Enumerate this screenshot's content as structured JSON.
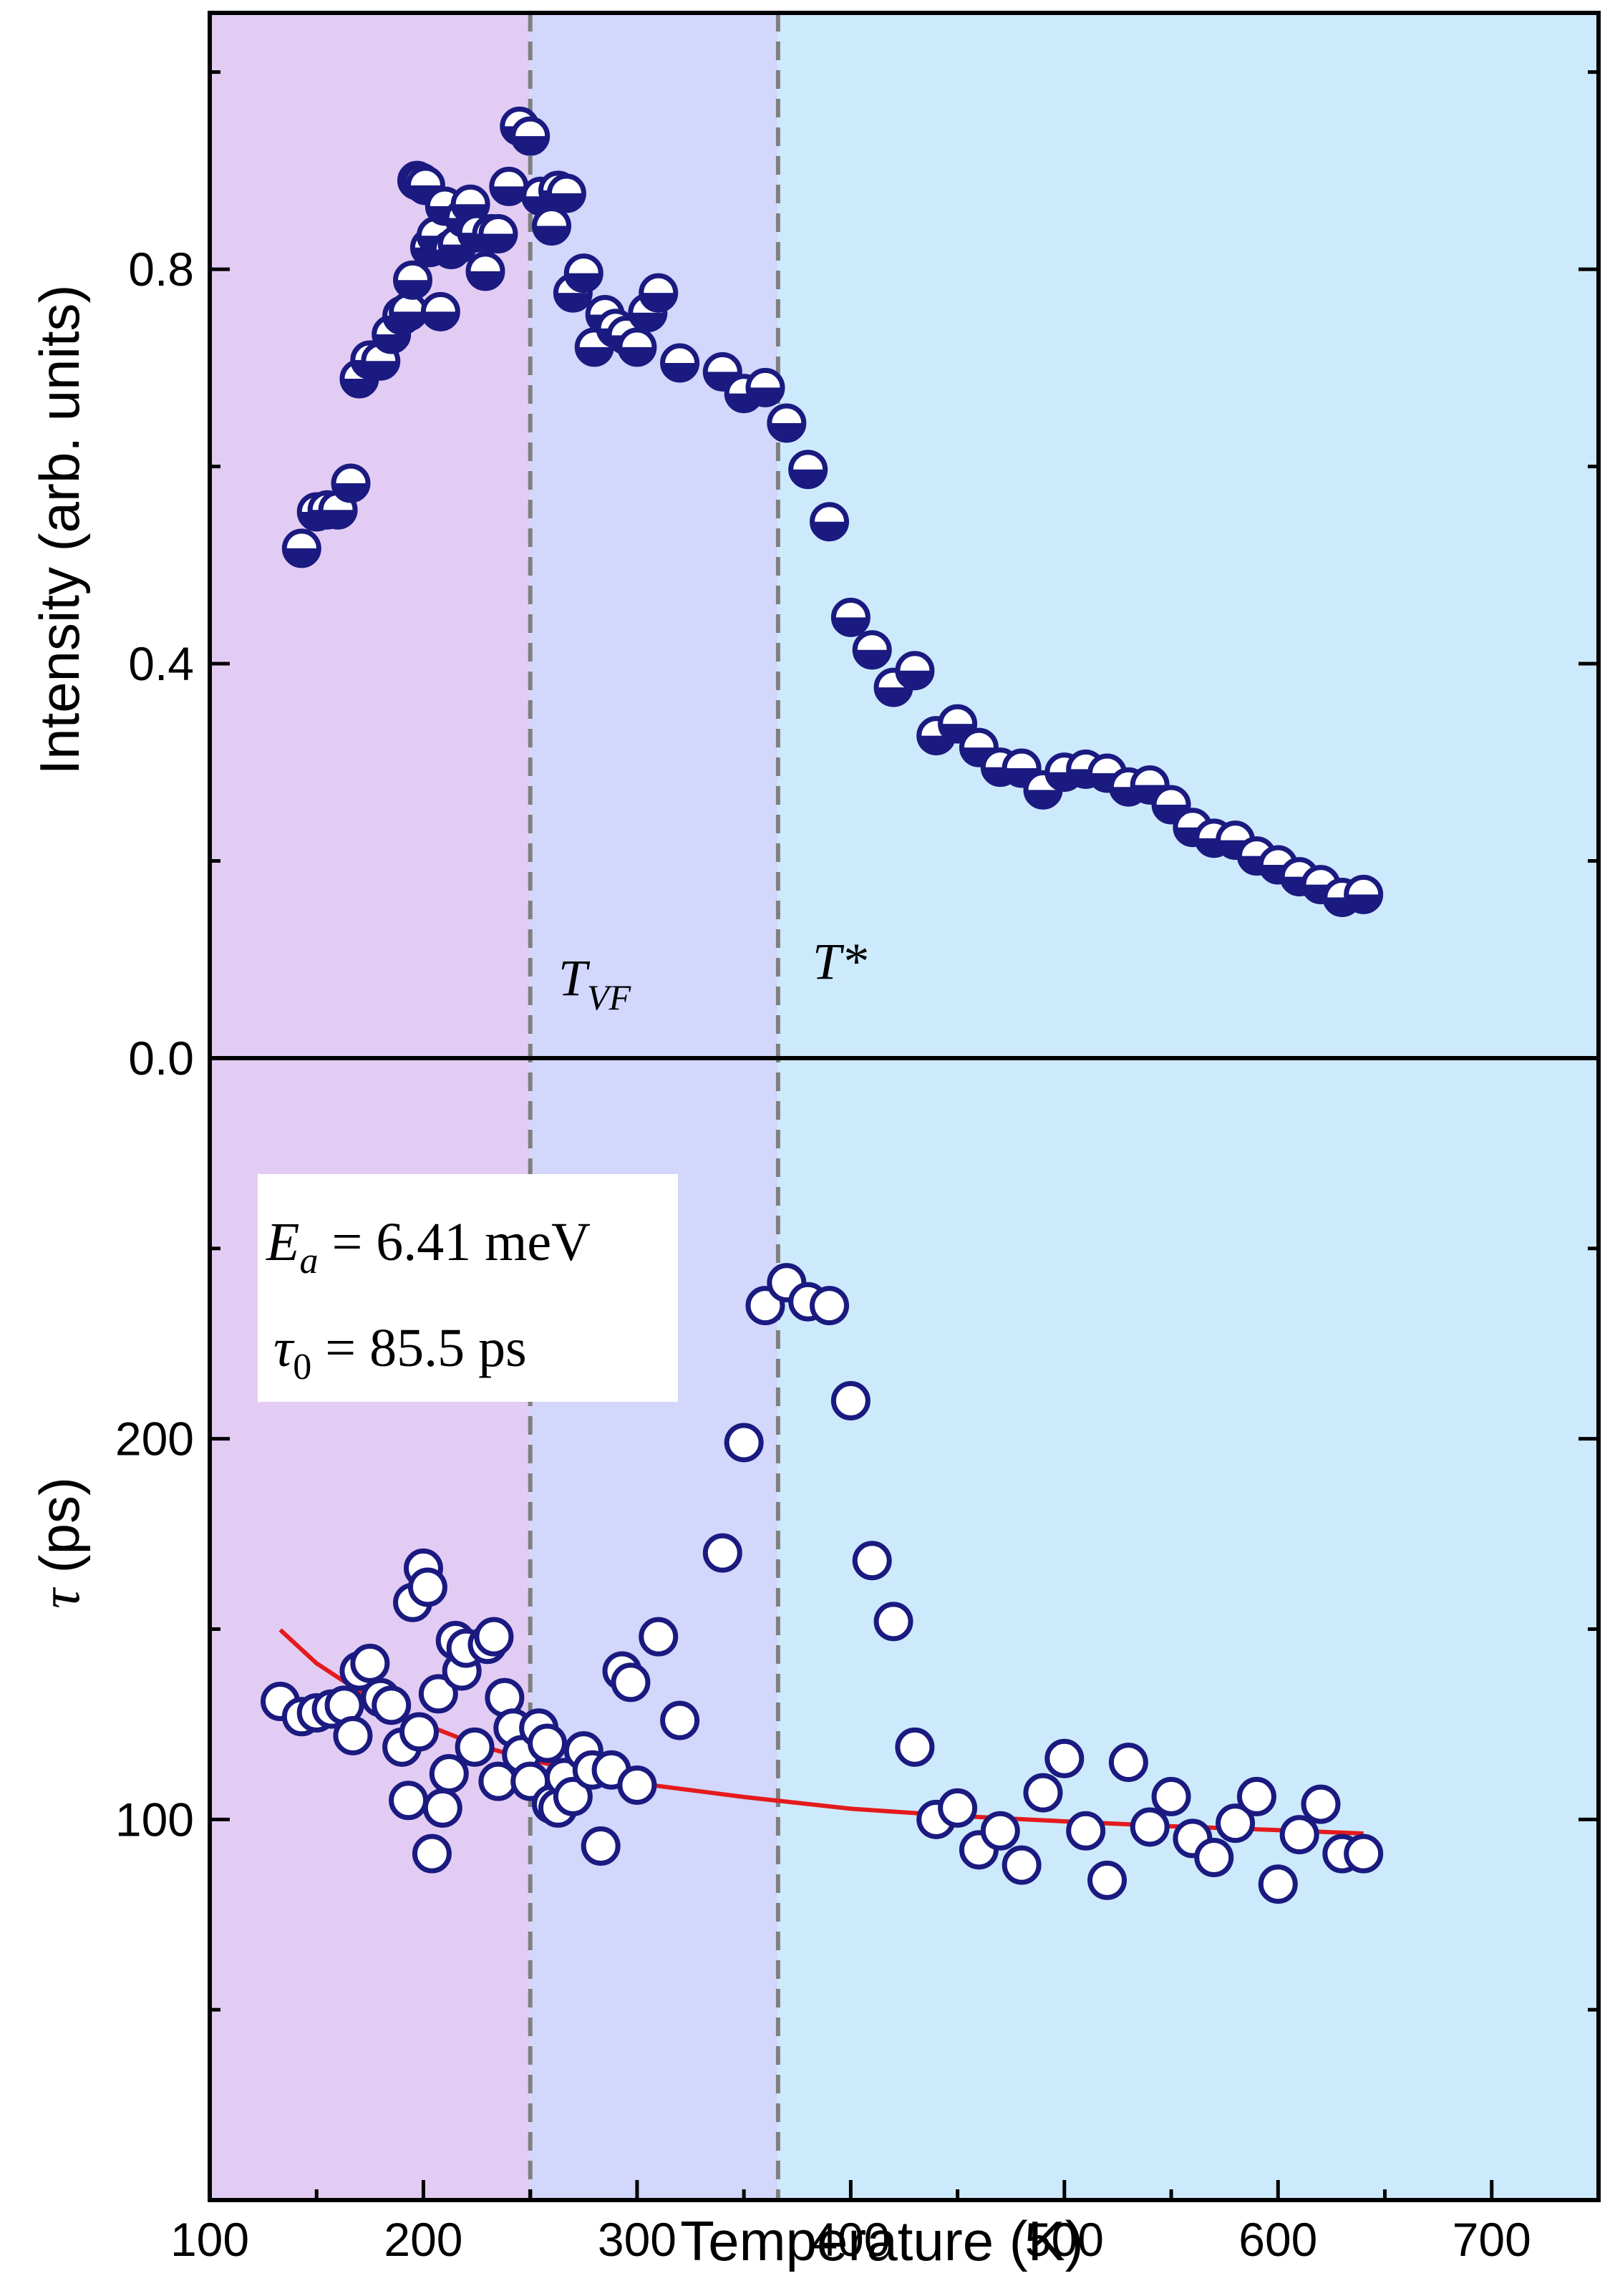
{
  "chart_data": [
    {
      "type": "scatter",
      "panel": "top",
      "xlabel": "Temperature (K)",
      "ylabel": "Intensity (arb. units)",
      "xlim": [
        100,
        750
      ],
      "ylim": [
        0,
        1.06
      ],
      "xticks": [
        "100",
        "200",
        "300",
        "400",
        "500",
        "600",
        "700"
      ],
      "yticks": [
        "0.0",
        "0.4",
        "0.8"
      ],
      "marker": "half-filled circle (bottom filled, navy)",
      "marker_color": "#1a1a80",
      "series": [
        {
          "x": [
            143,
            150,
            155,
            160,
            166,
            170,
            175,
            180,
            185,
            190,
            193,
            195,
            197,
            199,
            201,
            203,
            206,
            208,
            210,
            213,
            216,
            219,
            222,
            225,
            229,
            232,
            235,
            240,
            245,
            250,
            255,
            260,
            263,
            267,
            270,
            275,
            280,
            285,
            290,
            295,
            300,
            305,
            310,
            320,
            340,
            350,
            360,
            370,
            380,
            390,
            400,
            410,
            420,
            430,
            440,
            450,
            460,
            470,
            480,
            490,
            500,
            510,
            520,
            530,
            540,
            550,
            560,
            570,
            580,
            590,
            600,
            610,
            620,
            630,
            640
          ],
          "y": [
            0.517,
            0.554,
            0.556,
            0.556,
            0.583,
            0.689,
            0.708,
            0.707,
            0.734,
            0.753,
            0.757,
            0.789,
            0.89,
            0.888,
            0.885,
            0.822,
            0.834,
            0.757,
            0.864,
            0.82,
            0.825,
            0.852,
            0.866,
            0.837,
            0.798,
            0.836,
            0.836,
            0.884,
            0.945,
            0.935,
            0.874,
            0.844,
            0.88,
            0.877,
            0.776,
            0.796,
            0.721,
            0.754,
            0.74,
            0.733,
            0.721,
            0.756,
            0.776,
            0.705,
            0.696,
            0.674,
            0.68,
            0.644,
            0.597,
            0.544,
            0.447,
            0.414,
            0.376,
            0.393,
            0.327,
            0.339,
            0.315,
            0.295,
            0.294,
            0.272,
            0.29,
            0.293,
            0.289,
            0.275,
            0.277,
            0.257,
            0.234,
            0.223,
            0.221,
            0.205,
            0.196,
            0.184,
            0.176,
            0.163,
            0.166
          ]
        }
      ],
      "vlines": [
        {
          "x": 250,
          "label": "T",
          "sub": "VF"
        },
        {
          "x": 366,
          "label": "T*"
        }
      ],
      "regions": [
        {
          "from": 100,
          "to": 250,
          "color": "#e3ccf4"
        },
        {
          "from": 250,
          "to": 366,
          "color": "#d2d7fb"
        },
        {
          "from": 366,
          "to": 750,
          "color": "#cdeafc"
        }
      ]
    },
    {
      "type": "scatter",
      "panel": "bottom",
      "xlabel": "Temperature (K)",
      "ylabel": "τ (ps)",
      "ylabel_symbol": "τ",
      "ylabel_unit": " (ps)",
      "xlim": [
        100,
        750
      ],
      "ylim": [
        0,
        300
      ],
      "xticks": [
        "100",
        "200",
        "300",
        "400",
        "500",
        "600",
        "700"
      ],
      "yticks": [
        "100",
        "200"
      ],
      "marker": "open circle, navy",
      "marker_color": "#1a1a80",
      "series": [
        {
          "x": [
            133,
            143,
            150,
            157,
            163,
            167,
            170,
            175,
            180,
            185,
            190,
            193,
            195,
            198,
            200,
            202,
            204,
            207,
            209,
            212,
            215,
            218,
            220,
            224,
            230,
            233,
            235,
            238,
            242,
            246,
            250,
            254,
            258,
            260,
            263,
            266,
            270,
            275,
            279,
            283,
            288,
            293,
            297,
            300,
            310,
            320,
            340,
            350,
            360,
            370,
            380,
            390,
            400,
            410,
            420,
            430,
            440,
            450,
            460,
            470,
            480,
            490,
            500,
            510,
            520,
            530,
            540,
            550,
            560,
            570,
            580,
            590,
            600,
            610,
            620,
            630,
            640
          ],
          "y": [
            131,
            127,
            128,
            129,
            130,
            122,
            139,
            141,
            132,
            130,
            119,
            105,
            157,
            123,
            166,
            161,
            91,
            133,
            103,
            112,
            147,
            139,
            145,
            119,
            146,
            148,
            110,
            132,
            124,
            117,
            110,
            124,
            120,
            104,
            103,
            111,
            106,
            118,
            113,
            93,
            113,
            139,
            136,
            109,
            148,
            126,
            170,
            199,
            235,
            241,
            236,
            235,
            210,
            168,
            152,
            119,
            100,
            103,
            92,
            97,
            88,
            107,
            116,
            97,
            84,
            115,
            98,
            106,
            95,
            90,
            99,
            106,
            83,
            96,
            104,
            91,
            91
          ]
        }
      ],
      "fit": {
        "x": [
          133,
          150,
          175,
          200,
          225,
          250,
          300,
          350,
          400,
          450,
          500,
          550,
          600,
          640
        ],
        "y": [
          149.8,
          141.0,
          131.8,
          125.1,
          119.6,
          115.6,
          109.5,
          105.9,
          102.8,
          100.9,
          99.5,
          98.2,
          97.2,
          96.3
        ],
        "color": "#e41a1c"
      },
      "vlines": [
        {
          "x": 250
        },
        {
          "x": 366
        }
      ],
      "regions": [
        {
          "from": 100,
          "to": 250,
          "color": "#e3ccf4"
        },
        {
          "from": 250,
          "to": 366,
          "color": "#d2d7fb"
        },
        {
          "from": 366,
          "to": 750,
          "color": "#cdeafc"
        }
      ],
      "annotation": {
        "line1_symbol": "E",
        "line1_sub": "a",
        "line1_rest": " = 6.41 meV",
        "line2_symbol": "τ",
        "line2_sub": "0",
        "line2_rest": " = 85.5 ps"
      }
    }
  ]
}
